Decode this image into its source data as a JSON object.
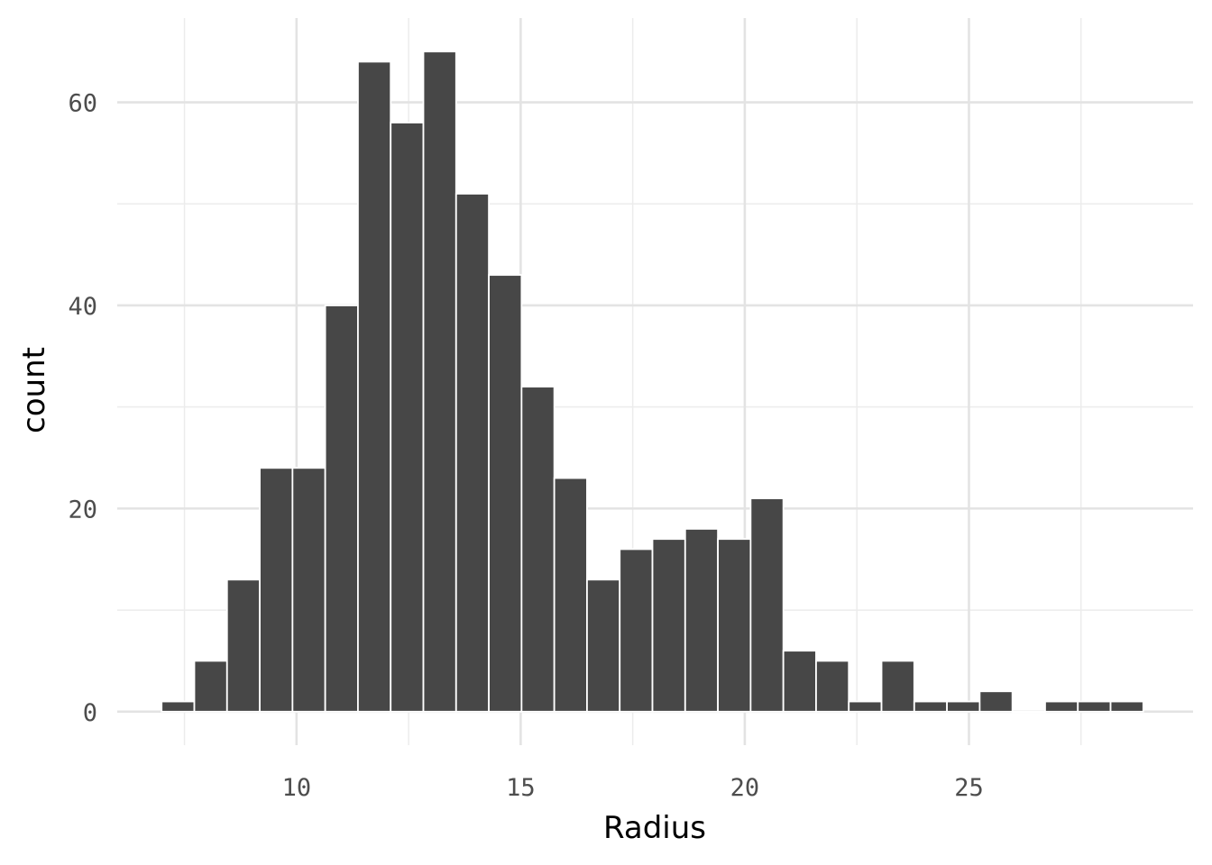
{
  "chart_data": {
    "type": "bar",
    "histogram": true,
    "xlabel": "Radius",
    "ylabel": "count",
    "x_ticks": [
      10,
      15,
      20,
      25
    ],
    "y_ticks": [
      0,
      20,
      40,
      60
    ],
    "xlim": [
      6.0,
      30.0
    ],
    "ylim": [
      -3.3,
      68.3
    ],
    "grid": true,
    "bar_color": "#474747",
    "bins": [
      {
        "start": 6.99,
        "end": 7.72,
        "count": 1
      },
      {
        "start": 7.72,
        "end": 8.45,
        "count": 5
      },
      {
        "start": 8.45,
        "end": 9.18,
        "count": 13
      },
      {
        "start": 9.18,
        "end": 9.91,
        "count": 24
      },
      {
        "start": 9.91,
        "end": 10.64,
        "count": 24
      },
      {
        "start": 10.64,
        "end": 11.37,
        "count": 40
      },
      {
        "start": 11.37,
        "end": 12.1,
        "count": 64
      },
      {
        "start": 12.1,
        "end": 12.83,
        "count": 58
      },
      {
        "start": 12.83,
        "end": 13.56,
        "count": 65
      },
      {
        "start": 13.56,
        "end": 14.29,
        "count": 51
      },
      {
        "start": 14.29,
        "end": 15.02,
        "count": 43
      },
      {
        "start": 15.02,
        "end": 15.75,
        "count": 32
      },
      {
        "start": 15.75,
        "end": 16.48,
        "count": 23
      },
      {
        "start": 16.48,
        "end": 17.21,
        "count": 13
      },
      {
        "start": 17.21,
        "end": 17.94,
        "count": 16
      },
      {
        "start": 17.94,
        "end": 18.67,
        "count": 17
      },
      {
        "start": 18.67,
        "end": 19.4,
        "count": 18
      },
      {
        "start": 19.4,
        "end": 20.13,
        "count": 17
      },
      {
        "start": 20.13,
        "end": 20.86,
        "count": 21
      },
      {
        "start": 20.86,
        "end": 21.59,
        "count": 6
      },
      {
        "start": 21.59,
        "end": 22.32,
        "count": 5
      },
      {
        "start": 22.32,
        "end": 23.05,
        "count": 1
      },
      {
        "start": 23.05,
        "end": 23.78,
        "count": 5
      },
      {
        "start": 23.78,
        "end": 24.51,
        "count": 1
      },
      {
        "start": 24.51,
        "end": 25.24,
        "count": 1
      },
      {
        "start": 25.24,
        "end": 25.97,
        "count": 2
      },
      {
        "start": 25.97,
        "end": 26.7,
        "count": 0
      },
      {
        "start": 26.7,
        "end": 27.43,
        "count": 1
      },
      {
        "start": 27.43,
        "end": 28.16,
        "count": 1
      },
      {
        "start": 28.16,
        "end": 28.89,
        "count": 1
      }
    ]
  }
}
